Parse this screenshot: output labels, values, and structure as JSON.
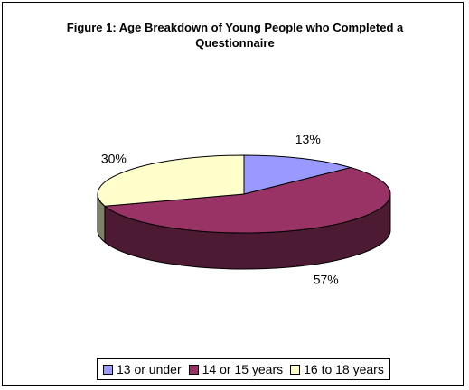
{
  "chart_data": {
    "type": "pie",
    "title": "Figure 1: Age Breakdown of Young People who Completed a Questionnaire",
    "categories": [
      "13 or under",
      "14 or 15 years",
      "16 to 18 years"
    ],
    "values": [
      13,
      57,
      30
    ],
    "value_labels": [
      "13%",
      "57%",
      "30%"
    ],
    "colors": [
      "#9999ff",
      "#993366",
      "#ffffcc"
    ],
    "legend": "bottom"
  }
}
